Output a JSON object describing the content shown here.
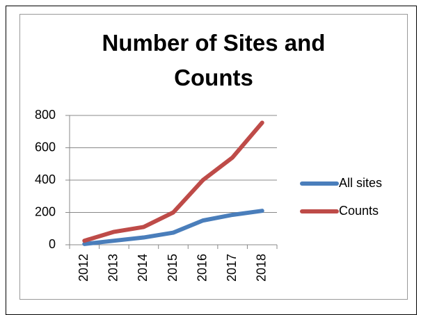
{
  "chart_data": {
    "type": "line",
    "title": "Number of Sites and Counts",
    "categories": [
      "2012",
      "2013",
      "2014",
      "2015",
      "2016",
      "2017",
      "2018"
    ],
    "series": [
      {
        "name": "All sites",
        "color": "#4a7ebb",
        "values": [
          5,
          25,
          45,
          75,
          150,
          185,
          210
        ]
      },
      {
        "name": "Counts",
        "color": "#be4b48",
        "values": [
          25,
          80,
          110,
          200,
          400,
          540,
          755
        ]
      }
    ],
    "ylim": [
      0,
      800
    ],
    "yticks": [
      0,
      200,
      400,
      600,
      800
    ],
    "grid": true,
    "legend": "right"
  }
}
